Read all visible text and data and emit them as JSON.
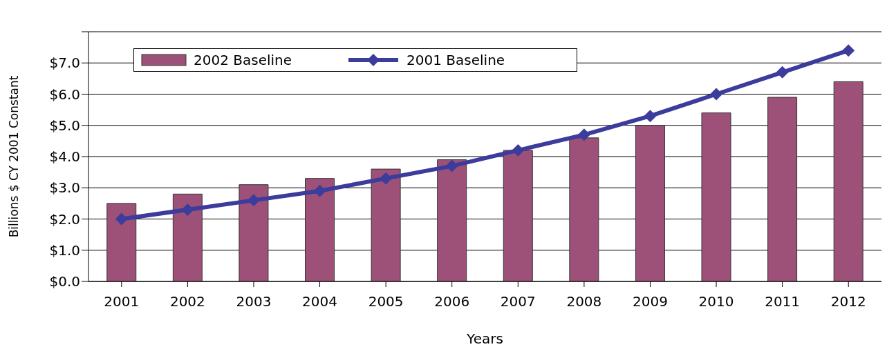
{
  "chart_data": {
    "type": "bar",
    "xlabel": "Years",
    "ylabel": "Billions $ CY 2001 Constant",
    "categories": [
      "2001",
      "2002",
      "2003",
      "2004",
      "2005",
      "2006",
      "2007",
      "2008",
      "2009",
      "2010",
      "2011",
      "2012"
    ],
    "series": [
      {
        "name": "2002 Baseline",
        "color": "#9e5178",
        "values": [
          2.5,
          2.8,
          3.1,
          3.3,
          3.6,
          3.9,
          4.2,
          4.6,
          5.0,
          5.4,
          5.9,
          6.4
        ]
      },
      {
        "name": "2001 Baseline",
        "type": "line",
        "color": "#3c3c9c",
        "values": [
          2.0,
          2.3,
          2.6,
          2.9,
          3.3,
          3.7,
          4.2,
          4.7,
          5.3,
          6.0,
          6.7,
          7.4
        ]
      }
    ],
    "ylim": [
      0,
      8
    ],
    "yticks": [
      {
        "value": 0,
        "label": "$0.0"
      },
      {
        "value": 1,
        "label": "$1.0"
      },
      {
        "value": 2,
        "label": "$2.0"
      },
      {
        "value": 3,
        "label": "$3.0"
      },
      {
        "value": 4,
        "label": "$4.0"
      },
      {
        "value": 5,
        "label": "$5.0"
      },
      {
        "value": 6,
        "label": "$6.0"
      },
      {
        "value": 7,
        "label": "$7.0"
      },
      {
        "value": 8,
        "label": null
      }
    ],
    "grid": "y",
    "legend": "top left",
    "marker": "diamond",
    "line_style": "solid"
  }
}
